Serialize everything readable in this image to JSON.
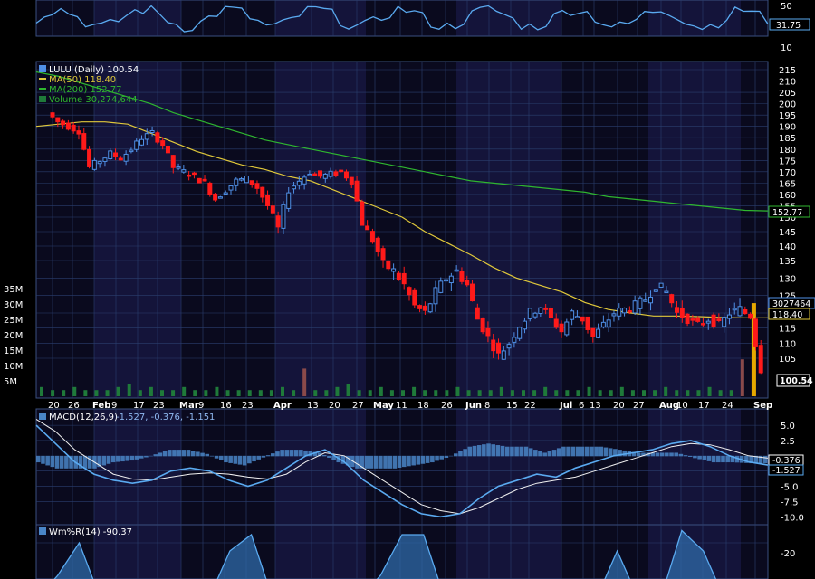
{
  "colors": {
    "background": "#000000",
    "band_dark": "#0a0a1e",
    "band_light": "#14143a",
    "grid": "#2a3f6e",
    "up_candle": "#4f8fe6",
    "down_candle": "#ff1a1a",
    "ma50": "#e0c83a",
    "ma200": "#2fb62f",
    "macd_line": "#5aaaf0",
    "signal_line": "#f0f0f0",
    "histogram": "#4a86c8",
    "volume_bar": "#1f7a3a",
    "rsi_line": "#5aaaf0"
  },
  "top_panel": {
    "ticks": [
      "50",
      "10"
    ],
    "value_tag": "31.75"
  },
  "price_panel": {
    "legend": {
      "main": "LULU (Daily) 100.54",
      "ma50": "MA(50) 118.40",
      "ma200": "MA(200) 152.77",
      "volume": "Volume 30,274,644"
    },
    "price_ticks": [
      "215",
      "210",
      "205",
      "200",
      "195",
      "190",
      "185",
      "180",
      "175",
      "170",
      "165",
      "160",
      "155",
      "150",
      "145",
      "140",
      "135",
      "130",
      "125",
      "120",
      "115",
      "110",
      "105"
    ],
    "volume_ticks": [
      "35M",
      "30M",
      "25M",
      "20M",
      "15M",
      "10M",
      "5M"
    ],
    "tags": {
      "ma200": "152.77",
      "volume": "3027464",
      "ma50": "118.40",
      "price": "100.54"
    },
    "x_labels": [
      "20",
      "26",
      "Feb",
      "9",
      "17",
      "23",
      "Mar",
      "9",
      "16",
      "23",
      "Apr",
      "13",
      "20",
      "27",
      "May",
      "11",
      "18",
      "26",
      "Jun",
      "8",
      "15",
      "22",
      "Jul",
      "6",
      "13",
      "20",
      "27",
      "Aug",
      "10",
      "17",
      "24",
      "Sep"
    ]
  },
  "macd_panel": {
    "legend_name": "MACD(12,26,9)",
    "legend_values": "-1.527, -0.376, -1.151",
    "ticks": [
      "5.0",
      "2.5",
      "-2.5",
      "-5.0",
      "-7.5",
      "-10.0"
    ],
    "tags": {
      "signal": "-0.376",
      "macd": "-1.527"
    }
  },
  "willr_panel": {
    "legend": "Wm%R(14) -90.37",
    "ticks": [
      "-20"
    ]
  },
  "chart_data": {
    "type": "candlestick",
    "symbol": "LULU",
    "period": "Daily",
    "x_labels": [
      "20",
      "26",
      "Feb",
      "9",
      "17",
      "23",
      "Mar",
      "9",
      "16",
      "23",
      "Apr",
      "13",
      "20",
      "27",
      "May",
      "11",
      "18",
      "26",
      "Jun",
      "8",
      "15",
      "22",
      "Jul",
      "6",
      "13",
      "20",
      "27",
      "Aug",
      "10",
      "17",
      "24",
      "Sep"
    ],
    "price_ylim": [
      100,
      218
    ],
    "close_path": [
      196,
      192,
      190,
      188,
      172,
      175,
      178,
      176,
      180,
      185,
      187,
      182,
      172,
      170,
      168,
      165,
      158,
      162,
      166,
      167,
      163,
      155,
      146,
      162,
      166,
      170,
      168,
      169,
      170,
      166,
      148,
      142,
      134,
      132,
      128,
      122,
      120,
      126,
      130,
      132,
      128,
      118,
      112,
      106,
      110,
      116,
      120,
      122,
      118,
      114,
      120,
      118,
      112,
      116,
      120,
      121,
      122,
      124,
      128,
      126,
      120,
      118,
      116,
      118,
      116,
      120,
      121,
      119,
      100.54
    ],
    "ma50": [
      190,
      191,
      192,
      192,
      191,
      187,
      183,
      179,
      176,
      173,
      171,
      168,
      166,
      162,
      158,
      154,
      150,
      145,
      141,
      137,
      133,
      130,
      128,
      126,
      123,
      121,
      120,
      119,
      119,
      118.8,
      118.5,
      118.4,
      118.4
    ],
    "ma200": [
      214,
      212,
      209,
      206,
      203,
      200,
      196,
      193,
      190,
      187,
      184,
      182,
      180,
      178,
      176,
      174,
      172,
      170,
      168,
      166,
      165,
      164,
      163,
      162,
      161,
      159,
      158,
      157,
      156,
      155,
      154,
      153,
      152.77
    ],
    "volume_millions": [
      3,
      2,
      2,
      3,
      2,
      2,
      2,
      3,
      4,
      2,
      3,
      2,
      2,
      3,
      2,
      2,
      3,
      2,
      2,
      2,
      2,
      2,
      3,
      2,
      9,
      2,
      2,
      3,
      4,
      2,
      2,
      3,
      2,
      2,
      3,
      2,
      2,
      2,
      3,
      2,
      2,
      2,
      3,
      2,
      2,
      2,
      3,
      2,
      2,
      2,
      3,
      2,
      2,
      3,
      2,
      2,
      2,
      3,
      2,
      2,
      2,
      3,
      2,
      2,
      12,
      30.27
    ],
    "volume_ylim": [
      0,
      38
    ],
    "last_close": 100.54,
    "ma50_last": 118.4,
    "ma200_last": 152.77,
    "volume_last": 30274644,
    "macd": {
      "ylim": [
        -11,
        6.5
      ],
      "macd_line": [
        5,
        2,
        -1,
        -3,
        -4,
        -4.5,
        -4,
        -2.5,
        -2,
        -2.5,
        -4,
        -5,
        -4,
        -2,
        0,
        1,
        -1,
        -4,
        -6,
        -8,
        -9.5,
        -10,
        -9.5,
        -7,
        -5,
        -4,
        -3,
        -3.5,
        -2,
        -1,
        0,
        0.5,
        1,
        2,
        2.5,
        1.5,
        0,
        -1,
        -1.527
      ],
      "signal_line": [
        6,
        4,
        1,
        -1,
        -3,
        -3.8,
        -4,
        -3.5,
        -3,
        -2.8,
        -3,
        -3.5,
        -3.8,
        -3,
        -1,
        0.5,
        0,
        -2,
        -4,
        -6,
        -8,
        -9,
        -9.5,
        -8.5,
        -7,
        -5.5,
        -4.5,
        -4,
        -3.5,
        -2.5,
        -1.5,
        -0.5,
        0.5,
        1.5,
        2,
        1.8,
        1,
        0,
        -0.376
      ],
      "histogram": [
        -1,
        -2,
        -2,
        -2,
        -1,
        -0.7,
        0,
        1,
        1,
        0.3,
        -1,
        -1.5,
        -0.2,
        1,
        1,
        0.5,
        -1,
        -2,
        -2,
        -2,
        -1.5,
        -1,
        0,
        1.5,
        2,
        1.5,
        1.5,
        0.5,
        1.5,
        1.5,
        1.5,
        1,
        0.5,
        0.5,
        0.5,
        -0.3,
        -1,
        -1,
        -1.151
      ]
    },
    "williams_r": {
      "ylim": [
        -100,
        0
      ],
      "values": [
        -90,
        -60,
        -20,
        -90,
        -90,
        -90,
        -85,
        -90,
        -90,
        -30,
        -10,
        -90,
        -90,
        -80,
        -90,
        -90,
        -60,
        -10,
        -10,
        -90,
        -90,
        -90,
        -80,
        -90,
        -90,
        -90,
        -90,
        -30,
        -90,
        -90,
        -5,
        -30,
        -90,
        -90,
        -90.37
      ],
      "last": -90.37
    }
  }
}
